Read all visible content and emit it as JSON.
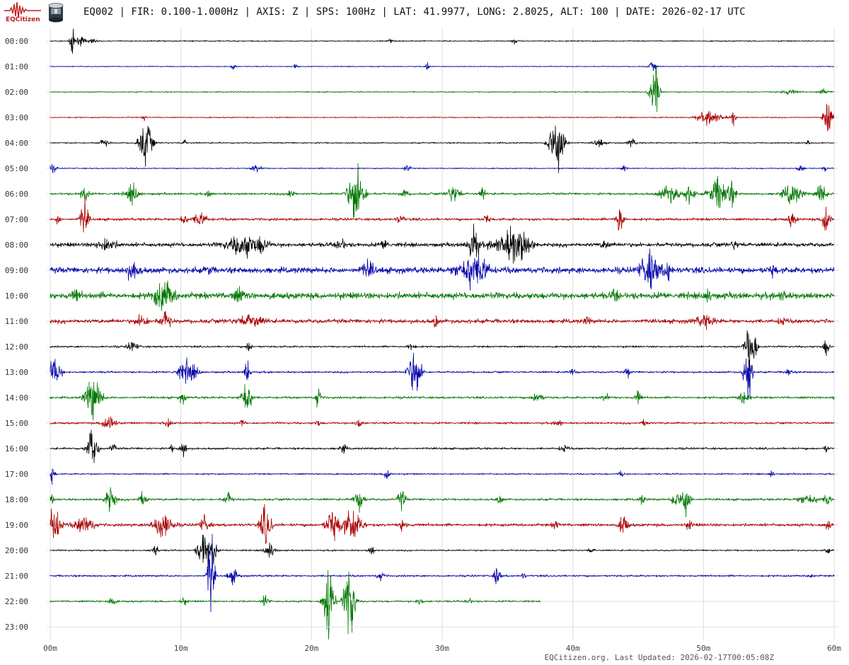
{
  "header": {
    "logo_text": "EQCitizen",
    "title": "EQ002 | FIR: 0.100-1.000Hz | AXIS: Z | SPS: 100Hz | LAT: 41.9977, LONG: 2.8025, ALT: 100 | DATE: 2026-02-17 UTC"
  },
  "footer": {
    "text": "EQCitizen.org. Last Updated: 2026-02-17T00:05:08Z"
  },
  "colors": {
    "black": "#000000",
    "blue": "#0000aa",
    "green": "#007700",
    "red": "#aa0000",
    "grid": "#dddddd"
  },
  "chart_data": {
    "type": "line",
    "title": "EQ002 | FIR: 0.100-1.000Hz | AXIS: Z | SPS: 100Hz | LAT: 41.9977, LONG: 2.8025, ALT: 100 | DATE: 2026-02-17 UTC",
    "xlabel": "",
    "ylabel": "",
    "xlim": [
      0,
      60
    ],
    "x_ticks": [
      "00m",
      "10m",
      "20m",
      "30m",
      "40m",
      "50m",
      "60m"
    ],
    "x_tick_values": [
      0,
      10,
      20,
      30,
      40,
      50,
      60
    ],
    "grid": true,
    "color_cycle": [
      "#000000",
      "#0000aa",
      "#007700",
      "#aa0000"
    ],
    "series": [
      {
        "name": "00:00",
        "end_min": 60,
        "noise": 0.6,
        "events": [
          [
            1.7,
            18,
            0.4
          ],
          [
            2.3,
            6,
            0.8
          ],
          [
            3.2,
            4,
            0.6
          ],
          [
            26,
            3,
            0.5
          ],
          [
            35.5,
            3,
            0.5
          ]
        ]
      },
      {
        "name": "01:00",
        "end_min": 60,
        "noise": 0.5,
        "events": [
          [
            14,
            5,
            0.4
          ],
          [
            28.9,
            7,
            0.3
          ],
          [
            18.8,
            4,
            0.4
          ],
          [
            46.1,
            6,
            0.6
          ]
        ]
      },
      {
        "name": "02:00",
        "end_min": 60,
        "noise": 0.6,
        "events": [
          [
            46.3,
            36,
            0.8
          ],
          [
            56.5,
            3,
            1.5
          ],
          [
            59.2,
            3,
            1.0
          ]
        ]
      },
      {
        "name": "03:00",
        "end_min": 60,
        "noise": 0.6,
        "events": [
          [
            7.2,
            4,
            0.3
          ],
          [
            50.5,
            9,
            2.0
          ],
          [
            52.3,
            11,
            0.4
          ],
          [
            59.5,
            36,
            0.6
          ]
        ]
      },
      {
        "name": "04:00",
        "end_min": 60,
        "noise": 0.7,
        "events": [
          [
            4.1,
            5,
            0.8
          ],
          [
            7.3,
            32,
            1.0
          ],
          [
            10.3,
            4,
            0.4
          ],
          [
            38.8,
            44,
            1.2
          ],
          [
            42,
            6,
            0.8
          ],
          [
            44.5,
            6,
            0.6
          ],
          [
            58,
            4,
            0.4
          ]
        ]
      },
      {
        "name": "05:00",
        "end_min": 60,
        "noise": 0.6,
        "events": [
          [
            0.2,
            5,
            0.6
          ],
          [
            15.8,
            6,
            0.8
          ],
          [
            27.3,
            4,
            0.6
          ],
          [
            43.9,
            5,
            0.5
          ],
          [
            57.4,
            5,
            0.6
          ],
          [
            59.3,
            4,
            0.3
          ]
        ]
      },
      {
        "name": "06:00",
        "end_min": 60,
        "noise": 1.2,
        "events": [
          [
            2.6,
            11,
            0.6
          ],
          [
            6.3,
            12,
            1.0
          ],
          [
            12.2,
            6,
            0.4
          ],
          [
            18.4,
            7,
            0.6
          ],
          [
            23.4,
            44,
            1.2
          ],
          [
            27.1,
            6,
            0.6
          ],
          [
            30.9,
            12,
            1.0
          ],
          [
            33.1,
            10,
            0.4
          ],
          [
            47.4,
            12,
            1.5
          ],
          [
            48.9,
            12,
            0.8
          ],
          [
            51.2,
            24,
            1.5
          ],
          [
            52.2,
            12,
            0.6
          ],
          [
            56.8,
            14,
            1.5
          ],
          [
            59.0,
            16,
            0.8
          ]
        ]
      },
      {
        "name": "07:00",
        "end_min": 60,
        "noise": 1.4,
        "events": [
          [
            0.6,
            8,
            0.4
          ],
          [
            2.6,
            28,
            0.6
          ],
          [
            10.2,
            8,
            0.6
          ],
          [
            11.5,
            10,
            1.0
          ],
          [
            26.8,
            6,
            0.6
          ],
          [
            33.4,
            8,
            0.4
          ],
          [
            43.6,
            24,
            0.6
          ],
          [
            56.8,
            10,
            0.6
          ],
          [
            59.4,
            26,
            0.6
          ]
        ]
      },
      {
        "name": "08:00",
        "end_min": 60,
        "noise": 2.2,
        "events": [
          [
            4.3,
            8,
            1.5
          ],
          [
            14.8,
            14,
            2.5
          ],
          [
            16.2,
            8,
            1.0
          ],
          [
            22.2,
            8,
            0.8
          ],
          [
            25.6,
            7,
            0.6
          ],
          [
            32.4,
            28,
            0.8
          ],
          [
            35.2,
            18,
            2.5
          ],
          [
            36.0,
            12,
            1.5
          ],
          [
            42.5,
            6,
            0.6
          ],
          [
            52.4,
            5,
            0.6
          ]
        ]
      },
      {
        "name": "09:00",
        "end_min": 60,
        "noise": 3.2,
        "events": [
          [
            6.3,
            12,
            1.0
          ],
          [
            12.1,
            6,
            0.5
          ],
          [
            24.3,
            10,
            1.0
          ],
          [
            32.1,
            20,
            2.0
          ],
          [
            33.1,
            12,
            1.0
          ],
          [
            45.9,
            24,
            1.5
          ],
          [
            47.3,
            14,
            0.5
          ],
          [
            55.3,
            6,
            0.6
          ]
        ]
      },
      {
        "name": "10:00",
        "end_min": 60,
        "noise": 3.4,
        "events": [
          [
            2.0,
            8,
            0.6
          ],
          [
            8.7,
            22,
            1.5
          ],
          [
            14.4,
            8,
            1.0
          ],
          [
            43.3,
            8,
            0.6
          ],
          [
            50.3,
            8,
            0.6
          ],
          [
            56.1,
            6,
            0.6
          ]
        ]
      },
      {
        "name": "11:00",
        "end_min": 60,
        "noise": 2.2,
        "events": [
          [
            7.0,
            8,
            1.0
          ],
          [
            8.8,
            12,
            0.8
          ],
          [
            15.3,
            8,
            2.0
          ],
          [
            29.5,
            12,
            0.3
          ],
          [
            41.1,
            5,
            0.5
          ],
          [
            50.1,
            7,
            1.5
          ],
          [
            56.0,
            6,
            0.5
          ]
        ]
      },
      {
        "name": "12:00",
        "end_min": 60,
        "noise": 1.0,
        "events": [
          [
            6.3,
            8,
            0.8
          ],
          [
            15.2,
            8,
            0.4
          ],
          [
            27.6,
            6,
            0.6
          ],
          [
            53.6,
            44,
            0.8
          ],
          [
            59.4,
            12,
            0.5
          ]
        ]
      },
      {
        "name": "13:00",
        "end_min": 60,
        "noise": 1.0,
        "events": [
          [
            0.3,
            20,
            1.0
          ],
          [
            10.5,
            16,
            1.5
          ],
          [
            15.1,
            22,
            0.4
          ],
          [
            27.9,
            36,
            1.0
          ],
          [
            40.0,
            6,
            0.5
          ],
          [
            44.2,
            6,
            0.5
          ],
          [
            53.4,
            48,
            0.6
          ],
          [
            56.5,
            6,
            0.5
          ]
        ]
      },
      {
        "name": "14:00",
        "end_min": 60,
        "noise": 1.2,
        "events": [
          [
            3.3,
            32,
            1.2
          ],
          [
            10.1,
            8,
            0.5
          ],
          [
            15.0,
            28,
            0.8
          ],
          [
            20.5,
            18,
            0.4
          ],
          [
            37.3,
            8,
            0.8
          ],
          [
            42.5,
            8,
            0.5
          ],
          [
            45.0,
            8,
            0.5
          ],
          [
            53.1,
            10,
            0.8
          ],
          [
            60.0,
            4,
            0.3
          ]
        ]
      },
      {
        "name": "15:00",
        "end_min": 60,
        "noise": 1.1,
        "events": [
          [
            4.5,
            14,
            1.0
          ],
          [
            9.0,
            6,
            0.8
          ],
          [
            14.7,
            6,
            0.4
          ],
          [
            20.5,
            5,
            0.4
          ],
          [
            23.6,
            8,
            0.5
          ],
          [
            38.9,
            5,
            0.6
          ],
          [
            45.5,
            6,
            0.5
          ]
        ]
      },
      {
        "name": "16:00",
        "end_min": 60,
        "noise": 1.1,
        "events": [
          [
            3.2,
            28,
            0.8
          ],
          [
            4.8,
            8,
            0.4
          ],
          [
            9.3,
            4,
            0.4
          ],
          [
            10.2,
            10,
            0.6
          ],
          [
            22.4,
            6,
            0.6
          ],
          [
            39.3,
            5,
            0.6
          ],
          [
            59.4,
            5,
            0.4
          ]
        ]
      },
      {
        "name": "17:00",
        "end_min": 60,
        "noise": 0.8,
        "events": [
          [
            0.1,
            12,
            0.5
          ],
          [
            25.8,
            8,
            0.6
          ],
          [
            43.7,
            5,
            0.4
          ],
          [
            55.2,
            5,
            0.4
          ]
        ]
      },
      {
        "name": "18:00",
        "end_min": 60,
        "noise": 1.2,
        "events": [
          [
            0.1,
            6,
            0.5
          ],
          [
            4.6,
            18,
            0.8
          ],
          [
            7.1,
            12,
            0.6
          ],
          [
            13.6,
            10,
            0.6
          ],
          [
            23.6,
            14,
            0.8
          ],
          [
            26.9,
            14,
            0.6
          ],
          [
            34.4,
            6,
            0.5
          ],
          [
            45.3,
            6,
            0.5
          ],
          [
            47.8,
            10,
            0.6
          ],
          [
            48.6,
            24,
            0.8
          ],
          [
            58.0,
            8,
            1.5
          ],
          [
            59.5,
            10,
            0.5
          ]
        ]
      },
      {
        "name": "19:00",
        "end_min": 60,
        "noise": 1.6,
        "events": [
          [
            0.3,
            28,
            1.0
          ],
          [
            2.6,
            12,
            1.5
          ],
          [
            8.6,
            18,
            1.5
          ],
          [
            11.8,
            10,
            0.8
          ],
          [
            16.5,
            30,
            0.8
          ],
          [
            21.6,
            22,
            1.0
          ],
          [
            23.1,
            20,
            1.5
          ],
          [
            27.0,
            10,
            0.5
          ],
          [
            38.7,
            6,
            0.5
          ],
          [
            43.9,
            18,
            0.6
          ],
          [
            48.9,
            6,
            0.5
          ],
          [
            59.5,
            8,
            0.5
          ]
        ]
      },
      {
        "name": "20:00",
        "end_min": 60,
        "noise": 0.8,
        "events": [
          [
            8.0,
            8,
            0.6
          ],
          [
            11.8,
            28,
            1.0
          ],
          [
            12.5,
            12,
            0.6
          ],
          [
            16.8,
            12,
            0.8
          ],
          [
            24.6,
            6,
            0.5
          ],
          [
            41.4,
            4,
            0.5
          ],
          [
            59.5,
            4,
            0.4
          ]
        ]
      },
      {
        "name": "21:00",
        "end_min": 60,
        "noise": 1.0,
        "events": [
          [
            12.3,
            70,
            0.5
          ],
          [
            14.0,
            10,
            0.8
          ],
          [
            25.3,
            6,
            0.6
          ],
          [
            34.2,
            14,
            0.5
          ],
          [
            36.2,
            4,
            0.4
          ],
          [
            58.2,
            4,
            0.4
          ]
        ]
      },
      {
        "name": "22:00",
        "end_min": 37.5,
        "noise": 1.0,
        "events": [
          [
            4.7,
            6,
            0.6
          ],
          [
            10.2,
            6,
            0.5
          ],
          [
            16.5,
            10,
            0.5
          ],
          [
            21.3,
            60,
            0.8
          ],
          [
            22.9,
            62,
            0.8
          ],
          [
            28.3,
            6,
            0.5
          ],
          [
            32.0,
            5,
            0.5
          ]
        ]
      },
      {
        "name": "23:00",
        "end_min": 0,
        "noise": 0,
        "events": []
      }
    ]
  }
}
